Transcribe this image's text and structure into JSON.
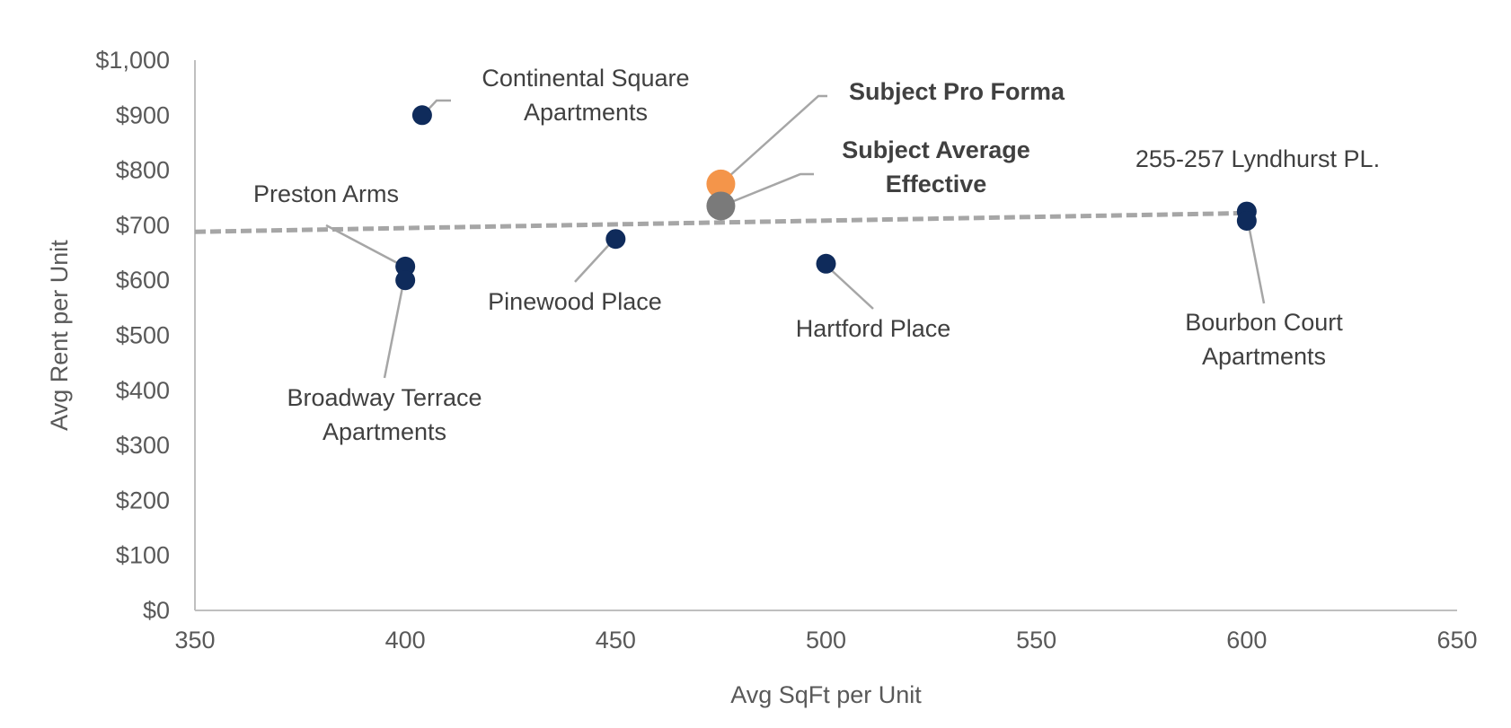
{
  "chart_data": {
    "type": "scatter",
    "xlabel": "Avg SqFt per Unit",
    "ylabel": "Avg Rent per Unit",
    "xlim": [
      350,
      650
    ],
    "ylim": [
      0,
      1000
    ],
    "x_ticks": [
      "350",
      "400",
      "450",
      "500",
      "550",
      "600",
      "650"
    ],
    "y_ticks": [
      "$0",
      "$100",
      "$200",
      "$300",
      "$400",
      "$500",
      "$600",
      "$700",
      "$800",
      "$900",
      "$1,000"
    ],
    "grid": false,
    "points": [
      {
        "label": [
          "Continental Square",
          "Apartments"
        ],
        "x": 404,
        "y": 900,
        "color": "#0f2b5b",
        "bold": false
      },
      {
        "label": [
          "Preston Arms"
        ],
        "x": 400,
        "y": 625,
        "color": "#0f2b5b",
        "bold": false
      },
      {
        "label": [
          "Broadway Terrace",
          "Apartments"
        ],
        "x": 400,
        "y": 600,
        "color": "#0f2b5b",
        "bold": false
      },
      {
        "label": [
          "Pinewood Place"
        ],
        "x": 450,
        "y": 675,
        "color": "#0f2b5b",
        "bold": false
      },
      {
        "label": [
          "Hartford Place"
        ],
        "x": 500,
        "y": 630,
        "color": "#0f2b5b",
        "bold": false
      },
      {
        "label": [
          "255-257 Lyndhurst PL."
        ],
        "x": 600,
        "y": 725,
        "color": "#0f2b5b",
        "bold": false
      },
      {
        "label": [
          "Bourbon Court",
          "Apartments"
        ],
        "x": 600,
        "y": 708,
        "color": "#0f2b5b",
        "bold": false
      },
      {
        "label": [
          "Subject Pro Forma"
        ],
        "x": 475,
        "y": 775,
        "color": "#f4954a",
        "bold": true
      },
      {
        "label": [
          "Subject Average",
          "Effective"
        ],
        "x": 475,
        "y": 735,
        "color": "#7a7a7a",
        "bold": true
      }
    ],
    "trendline": {
      "x": [
        350,
        600
      ],
      "y": [
        688,
        722
      ],
      "color": "#a6a6a6",
      "style": "dashed"
    }
  }
}
